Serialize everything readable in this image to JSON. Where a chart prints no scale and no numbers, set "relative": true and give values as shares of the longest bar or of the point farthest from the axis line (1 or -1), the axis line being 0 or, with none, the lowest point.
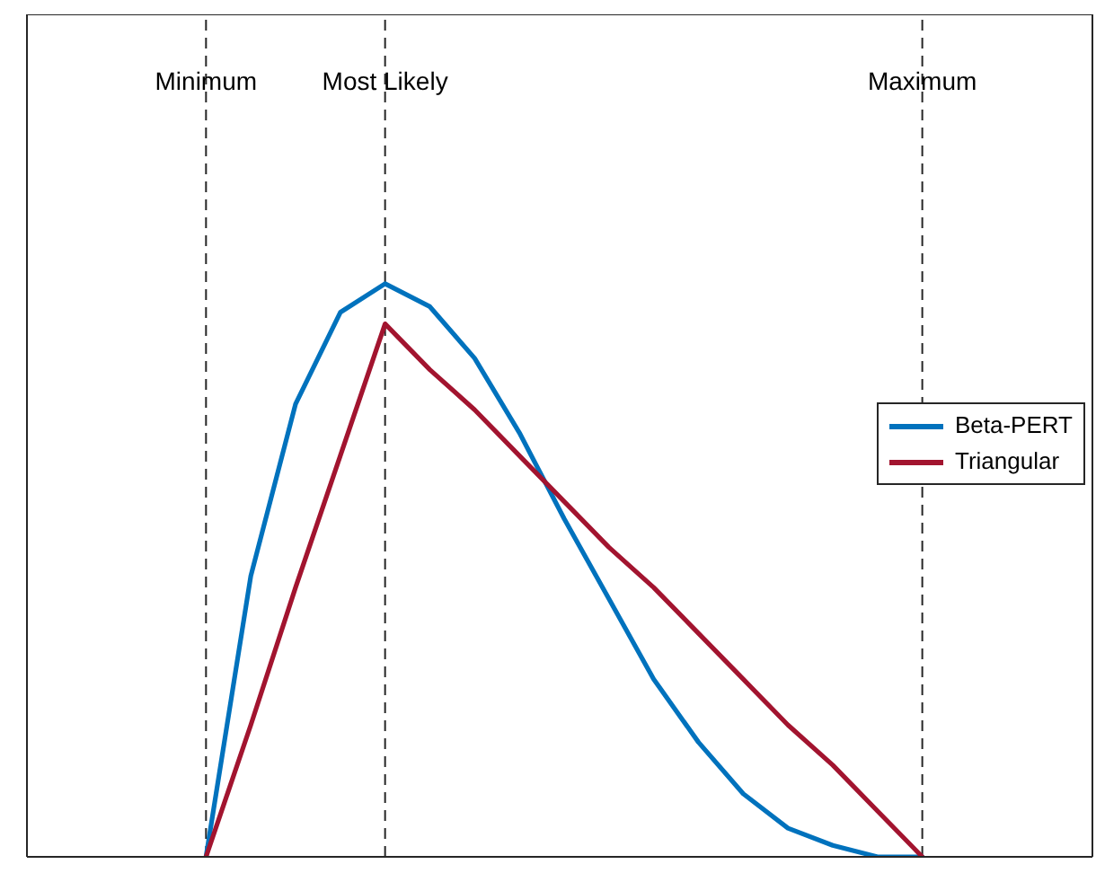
{
  "chart_data": {
    "type": "line",
    "relative": true,
    "tick_labels": "x",
    "legend": "right",
    "marker": "none",
    "line_style": "solid",
    "categories": [
      "Minimum",
      null,
      null,
      null,
      "Most Likely",
      null,
      null,
      null,
      null,
      null,
      null,
      null,
      null,
      null,
      null,
      null,
      "Maximum"
    ],
    "series": [
      {
        "name": "Beta-PERT",
        "color": "#0072bd",
        "values": [
          0,
          0.49,
          0.79,
          0.95,
          1,
          0.96,
          0.87,
          0.74,
          0.59,
          0.45,
          0.31,
          0.2,
          0.11,
          0.05,
          0.02,
          0,
          0
        ]
      },
      {
        "name": "Triangular",
        "color": "#a2142f",
        "values": [
          0,
          0.23,
          0.47,
          0.7,
          0.93,
          0.85,
          0.78,
          0.7,
          0.62,
          0.54,
          0.47,
          0.39,
          0.31,
          0.23,
          0.16,
          0.08,
          0
        ]
      }
    ],
    "ref_lines": [
      {
        "axis": "x",
        "value": "Minimum",
        "color": "#262626",
        "line_style": "dashed"
      },
      {
        "axis": "x",
        "value": "Most Likely",
        "color": "#262626",
        "line_style": "dashed"
      },
      {
        "axis": "x",
        "value": "Maximum",
        "color": "#262626",
        "line_style": "dashed"
      }
    ]
  }
}
